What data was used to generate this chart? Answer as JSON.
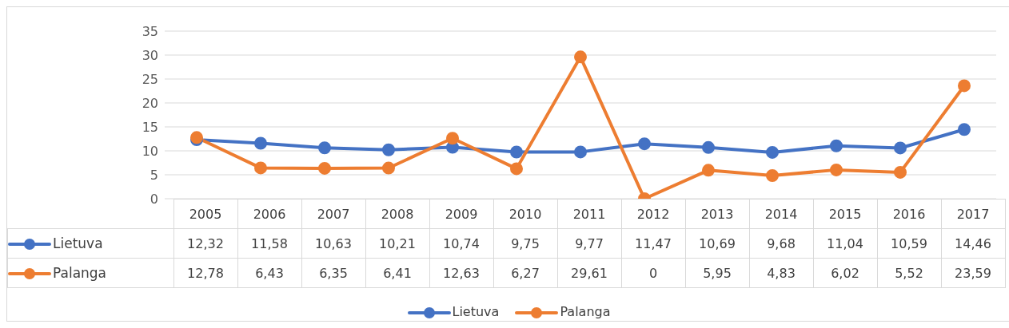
{
  "chart_data": {
    "type": "line",
    "categories": [
      "2005",
      "2006",
      "2007",
      "2008",
      "2009",
      "2010",
      "2011",
      "2012",
      "2013",
      "2014",
      "2015",
      "2016",
      "2017"
    ],
    "series": [
      {
        "name": "Lietuva",
        "color": "#4472c4",
        "values": [
          12.32,
          11.58,
          10.63,
          10.21,
          10.74,
          9.75,
          9.77,
          11.47,
          10.69,
          9.68,
          11.04,
          10.59,
          14.46
        ],
        "value_labels": [
          "12,32",
          "11,58",
          "10,63",
          "10,21",
          "10,74",
          "9,75",
          "9,77",
          "11,47",
          "10,69",
          "9,68",
          "11,04",
          "10,59",
          "14,46"
        ]
      },
      {
        "name": "Palanga",
        "color": "#ed7d31",
        "values": [
          12.78,
          6.43,
          6.35,
          6.41,
          12.63,
          6.27,
          29.61,
          0,
          5.95,
          4.83,
          6.02,
          5.52,
          23.59
        ],
        "value_labels": [
          "12,78",
          "6,43",
          "6,35",
          "6,41",
          "12,63",
          "6,27",
          "29,61",
          "0",
          "5,95",
          "4,83",
          "6,02",
          "5,52",
          "23,59"
        ]
      }
    ],
    "ylim": [
      0,
      35
    ],
    "yticks": [
      0,
      5,
      10,
      15,
      20,
      25,
      30,
      35
    ],
    "grid": "y",
    "legend": "bottom",
    "marker": "circle",
    "line_style": "solid"
  }
}
